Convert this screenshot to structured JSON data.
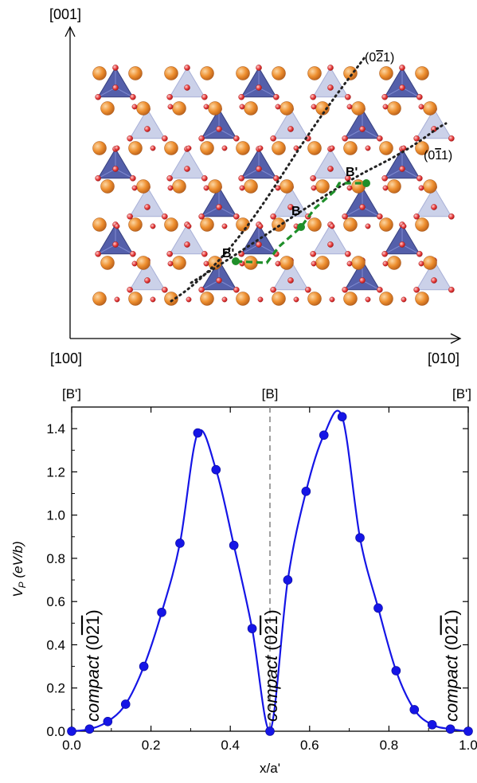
{
  "crystal": {
    "axes": {
      "vertical": "[001]",
      "origin": "[100]",
      "horizontal": "[010]"
    },
    "plane_labels": [
      "(0Ā2Ā1)",
      "(0Ā1Ā1)"
    ],
    "plane_labels_text": {
      "p1_pre": "(0",
      "p1_bar": "2",
      "p1_post": "1)",
      "p2_pre": "(0",
      "p2_bar": "1",
      "p2_post": "1)"
    },
    "site_labels": {
      "b_prime_upper": "B'",
      "b_center": "B",
      "b_prime_lower": "B'"
    },
    "colors": {
      "cation": "#e8892a",
      "oxygen": "#e8333a",
      "tetra_dark": "#4b57a6",
      "tetra_light": "#c3c9e6",
      "path": "#1f8f2a"
    }
  },
  "chart_data": {
    "type": "line",
    "title": "",
    "xlabel": "x/a'",
    "ylabel_parts": {
      "v": "V",
      "sub": "P",
      "unit": "(eV/b)"
    },
    "xlim": [
      0.0,
      1.0
    ],
    "ylim": [
      0.0,
      1.5
    ],
    "xticks": [
      "0.0",
      "0.2",
      "0.4",
      "0.6",
      "0.8",
      "1.0"
    ],
    "yticks": [
      "0.0",
      "0.2",
      "0.4",
      "0.6",
      "0.8",
      "1.0",
      "1.2",
      "1.4"
    ],
    "top_labels": [
      "[B']",
      "[B]",
      "[B']"
    ],
    "top_label_positions": [
      0.0,
      0.5,
      1.0
    ],
    "annotations": {
      "word": "compact",
      "pre": "(0",
      "bar1": "2",
      "bar2": "1",
      "post": ")"
    },
    "annotation_positions": [
      0.05,
      0.5,
      0.955
    ],
    "dashed_line_x": 0.5,
    "line_color": "#1515e6",
    "series": [
      {
        "points": [
          [
            0.0,
            0.0
          ],
          [
            0.045,
            0.01
          ],
          [
            0.091,
            0.045
          ],
          [
            0.136,
            0.125
          ],
          [
            0.182,
            0.3
          ],
          [
            0.227,
            0.55
          ],
          [
            0.273,
            0.87
          ],
          [
            0.318,
            1.38
          ],
          [
            0.364,
            1.21
          ],
          [
            0.409,
            0.86
          ],
          [
            0.455,
            0.475
          ],
          [
            0.5,
            0.0
          ],
          [
            0.545,
            0.7
          ],
          [
            0.591,
            1.11
          ],
          [
            0.636,
            1.37
          ],
          [
            0.682,
            1.455
          ],
          [
            0.727,
            0.895
          ],
          [
            0.773,
            0.57
          ],
          [
            0.818,
            0.28
          ],
          [
            0.864,
            0.1
          ],
          [
            0.909,
            0.03
          ],
          [
            0.955,
            0.01
          ],
          [
            1.0,
            0.0
          ]
        ]
      }
    ]
  }
}
